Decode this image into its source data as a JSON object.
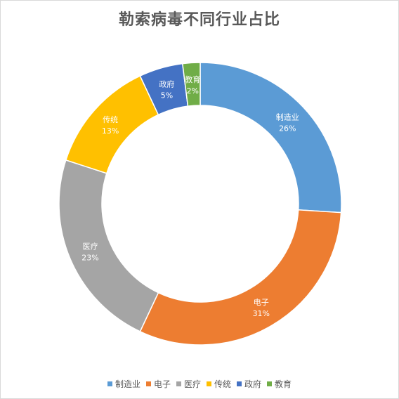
{
  "chart_data": {
    "type": "pie",
    "subtype": "donut",
    "title": "勒索病毒不同行业占比",
    "categories": [
      "制造业",
      "电子",
      "医疗",
      "传统",
      "政府",
      "教育"
    ],
    "values": [
      26,
      31,
      23,
      13,
      5,
      2
    ],
    "value_labels": [
      "26%",
      "31%",
      "23%",
      "13%",
      "5%",
      "2%"
    ],
    "colors": [
      "#5b9bd5",
      "#ed7d31",
      "#a5a5a5",
      "#ffc000",
      "#4472c4",
      "#70ad47"
    ],
    "legend_position": "bottom",
    "start_angle_deg": 0,
    "direction": "clockwise"
  }
}
